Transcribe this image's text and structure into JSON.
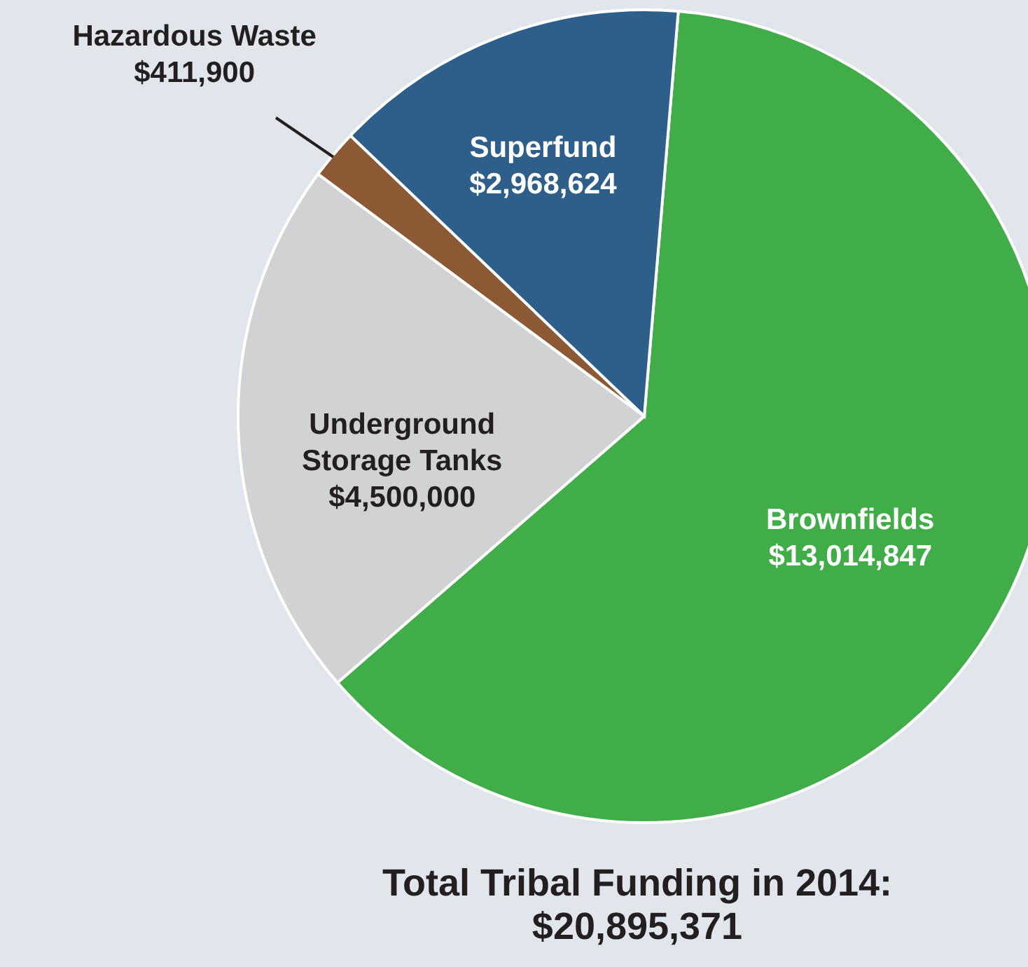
{
  "chart_data": {
    "type": "pie",
    "title": "Total Tribal Funding in 2014:",
    "subtitle": "$20,895,371",
    "categories": [
      "Brownfields",
      "Underground Storage Tanks",
      "Hazardous Waste",
      "Superfund"
    ],
    "values": [
      13014847,
      4500000,
      411900,
      2968624
    ],
    "colors": [
      "#41ad49",
      "#d1d2d4",
      "#8b5a35",
      "#2e5f8a"
    ],
    "value_labels": [
      "$13,014,847",
      "$4,500,000",
      "$411,900",
      "$2,968,624"
    ]
  }
}
